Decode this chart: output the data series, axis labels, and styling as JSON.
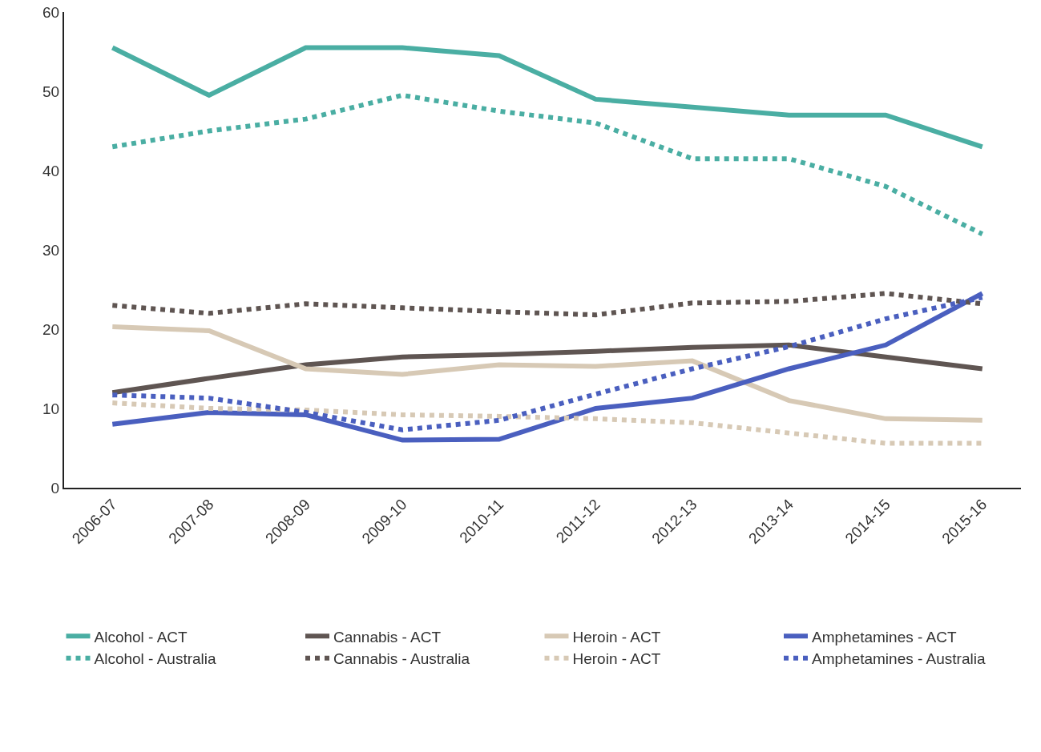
{
  "chart_data": {
    "type": "line",
    "categories": [
      "2006-07",
      "2007-08",
      "2008-09",
      "2009-10",
      "2010-11",
      "2011-12",
      "2012-13",
      "2013-14",
      "2014-15",
      "2015-16"
    ],
    "ylim": [
      0,
      60
    ],
    "yticks": [
      0,
      10,
      20,
      30,
      40,
      50,
      60
    ],
    "grid": false,
    "legend": "bottom",
    "marker": "none",
    "series": [
      {
        "name": "Alcohol - ACT",
        "color": "#4aaea3",
        "line_style": "solid",
        "values": [
          55.5,
          49.5,
          55.5,
          55.5,
          54.5,
          49,
          48,
          47,
          47,
          43
        ]
      },
      {
        "name": "Cannabis - ACT",
        "color": "#5f5552",
        "line_style": "solid",
        "values": [
          12,
          13.8,
          15.5,
          16.5,
          16.8,
          17.2,
          17.7,
          18,
          16.5,
          15
        ]
      },
      {
        "name": "Heroin - ACT",
        "color": "#d7c9b5",
        "line_style": "solid",
        "values": [
          20.3,
          19.8,
          15,
          14.3,
          15.5,
          15.3,
          16,
          11,
          8.7,
          8.5
        ]
      },
      {
        "name": "Amphetamines - ACT",
        "color": "#4a5fbf",
        "line_style": "solid",
        "values": [
          8,
          9.5,
          9.2,
          6,
          6.1,
          10,
          11.3,
          15,
          18,
          24.5
        ]
      },
      {
        "name": "Alcohol - Australia",
        "color": "#4aaea3",
        "line_style": "dotted",
        "values": [
          43,
          45,
          46.5,
          49.5,
          47.5,
          46,
          41.5,
          41.5,
          38,
          32
        ]
      },
      {
        "name": "Cannabis - Australia",
        "color": "#5f5552",
        "line_style": "dotted",
        "values": [
          23,
          22,
          23.2,
          22.7,
          22.2,
          21.8,
          23.3,
          23.5,
          24.5,
          23.2
        ]
      },
      {
        "name": "Heroin - ACT",
        "color": "#d7c9b5",
        "line_style": "dotted",
        "values": [
          10.7,
          10,
          9.8,
          9.2,
          9,
          8.7,
          8.2,
          6.9,
          5.6,
          5.6
        ]
      },
      {
        "name": "Amphetamines - Australia",
        "color": "#4a5fbf",
        "line_style": "dotted",
        "values": [
          11.7,
          11.3,
          9.5,
          7.3,
          8.5,
          11.8,
          15,
          17.8,
          21.3,
          24
        ]
      }
    ]
  }
}
